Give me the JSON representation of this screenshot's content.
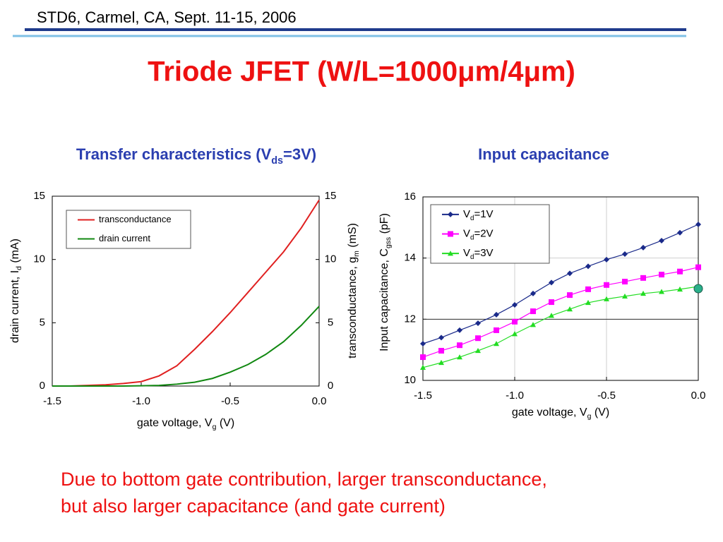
{
  "header": "STD6, Carmel, CA, Sept. 11-15, 2006",
  "title": "Triode JFET (W/L=1000μm/4μm)",
  "footer": [
    "Due to bottom gate contribution, larger transconductance,",
    "but also larger capacitance (and gate current)"
  ],
  "chart_data": [
    {
      "type": "line",
      "subtitle": [
        "Transfer characteristics (V",
        "ds",
        "=3V)"
      ],
      "xlabel": [
        "gate voltage, V",
        "g",
        " (V)"
      ],
      "ylabel": [
        "drain current, I",
        "d",
        " (mA)"
      ],
      "y2label": [
        "transconductance, g",
        "m",
        " (mS)"
      ],
      "x": [
        -1.5,
        -1.4,
        -1.3,
        -1.2,
        -1.1,
        -1.0,
        -0.9,
        -0.8,
        -0.7,
        -0.6,
        -0.5,
        -0.4,
        -0.3,
        -0.2,
        -0.1,
        0.0
      ],
      "xlim": [
        -1.5,
        0
      ],
      "xticks": [
        -1.5,
        {
          "value": -1,
          "label": "-1.0"
        },
        -0.5,
        {
          "value": 0,
          "label": "0.0"
        }
      ],
      "ylim": [
        0,
        15
      ],
      "yticks": [
        0,
        5,
        10,
        15
      ],
      "y2lim": [
        0,
        15
      ],
      "y2ticks": [
        0,
        5,
        10,
        15
      ],
      "grid": false,
      "legend": "upper left",
      "series": [
        {
          "name": "transconductance",
          "color": "#e02020",
          "axis": "y2",
          "values": [
            0,
            0,
            0.05,
            0.1,
            0.2,
            0.35,
            0.8,
            1.6,
            2.9,
            4.3,
            5.8,
            7.4,
            9.0,
            10.6,
            12.5,
            14.7
          ]
        },
        {
          "name": "drain current",
          "color": "#118811",
          "values": [
            0,
            0,
            0,
            0,
            0,
            0.02,
            0.05,
            0.15,
            0.3,
            0.6,
            1.1,
            1.7,
            2.5,
            3.5,
            4.8,
            6.3
          ]
        }
      ]
    },
    {
      "type": "line",
      "subtitle": "Input capacitance",
      "xlabel": [
        "gate voltage, V",
        "g",
        " (V)"
      ],
      "ylabel": [
        "Input capacitance, C",
        "gss",
        " (pF)"
      ],
      "x": [
        -1.5,
        -1.4,
        -1.3,
        -1.2,
        -1.1,
        -1.0,
        -0.9,
        -0.8,
        -0.7,
        -0.6,
        -0.5,
        -0.4,
        -0.3,
        -0.2,
        -0.1,
        0.0
      ],
      "xlim": [
        -1.5,
        0
      ],
      "xticks": [
        -1.5,
        {
          "value": -1,
          "label": "-1.0"
        },
        -0.5,
        {
          "value": 0,
          "label": "0.0"
        }
      ],
      "ylim": [
        10,
        16
      ],
      "yticks": [
        10,
        12,
        14,
        16
      ],
      "grid": true,
      "legend": "upper left",
      "series": [
        {
          "name": [
            "V",
            "d",
            "=1V"
          ],
          "color": "#1a2a8a",
          "marker": "diamond",
          "values": [
            11.2,
            11.4,
            11.64,
            11.87,
            12.15,
            12.47,
            12.84,
            13.2,
            13.5,
            13.73,
            13.95,
            14.13,
            14.34,
            14.57,
            14.83,
            15.1
          ]
        },
        {
          "name": [
            "V",
            "d",
            "=2V"
          ],
          "color": "#ff00ff",
          "marker": "square",
          "values": [
            10.76,
            10.97,
            11.15,
            11.38,
            11.64,
            11.92,
            12.26,
            12.56,
            12.79,
            12.98,
            13.12,
            13.23,
            13.35,
            13.46,
            13.56,
            13.7
          ]
        },
        {
          "name": [
            "V",
            "d",
            "=3V"
          ],
          "color": "#22dd22",
          "marker": "triangle",
          "values": [
            10.42,
            10.58,
            10.76,
            10.97,
            11.2,
            11.52,
            11.82,
            12.12,
            12.33,
            12.54,
            12.66,
            12.75,
            12.84,
            12.9,
            12.98,
            13.07
          ]
        }
      ],
      "highlight": {
        "x": 0,
        "y": 13.0,
        "color": "#2ab08a"
      }
    }
  ]
}
